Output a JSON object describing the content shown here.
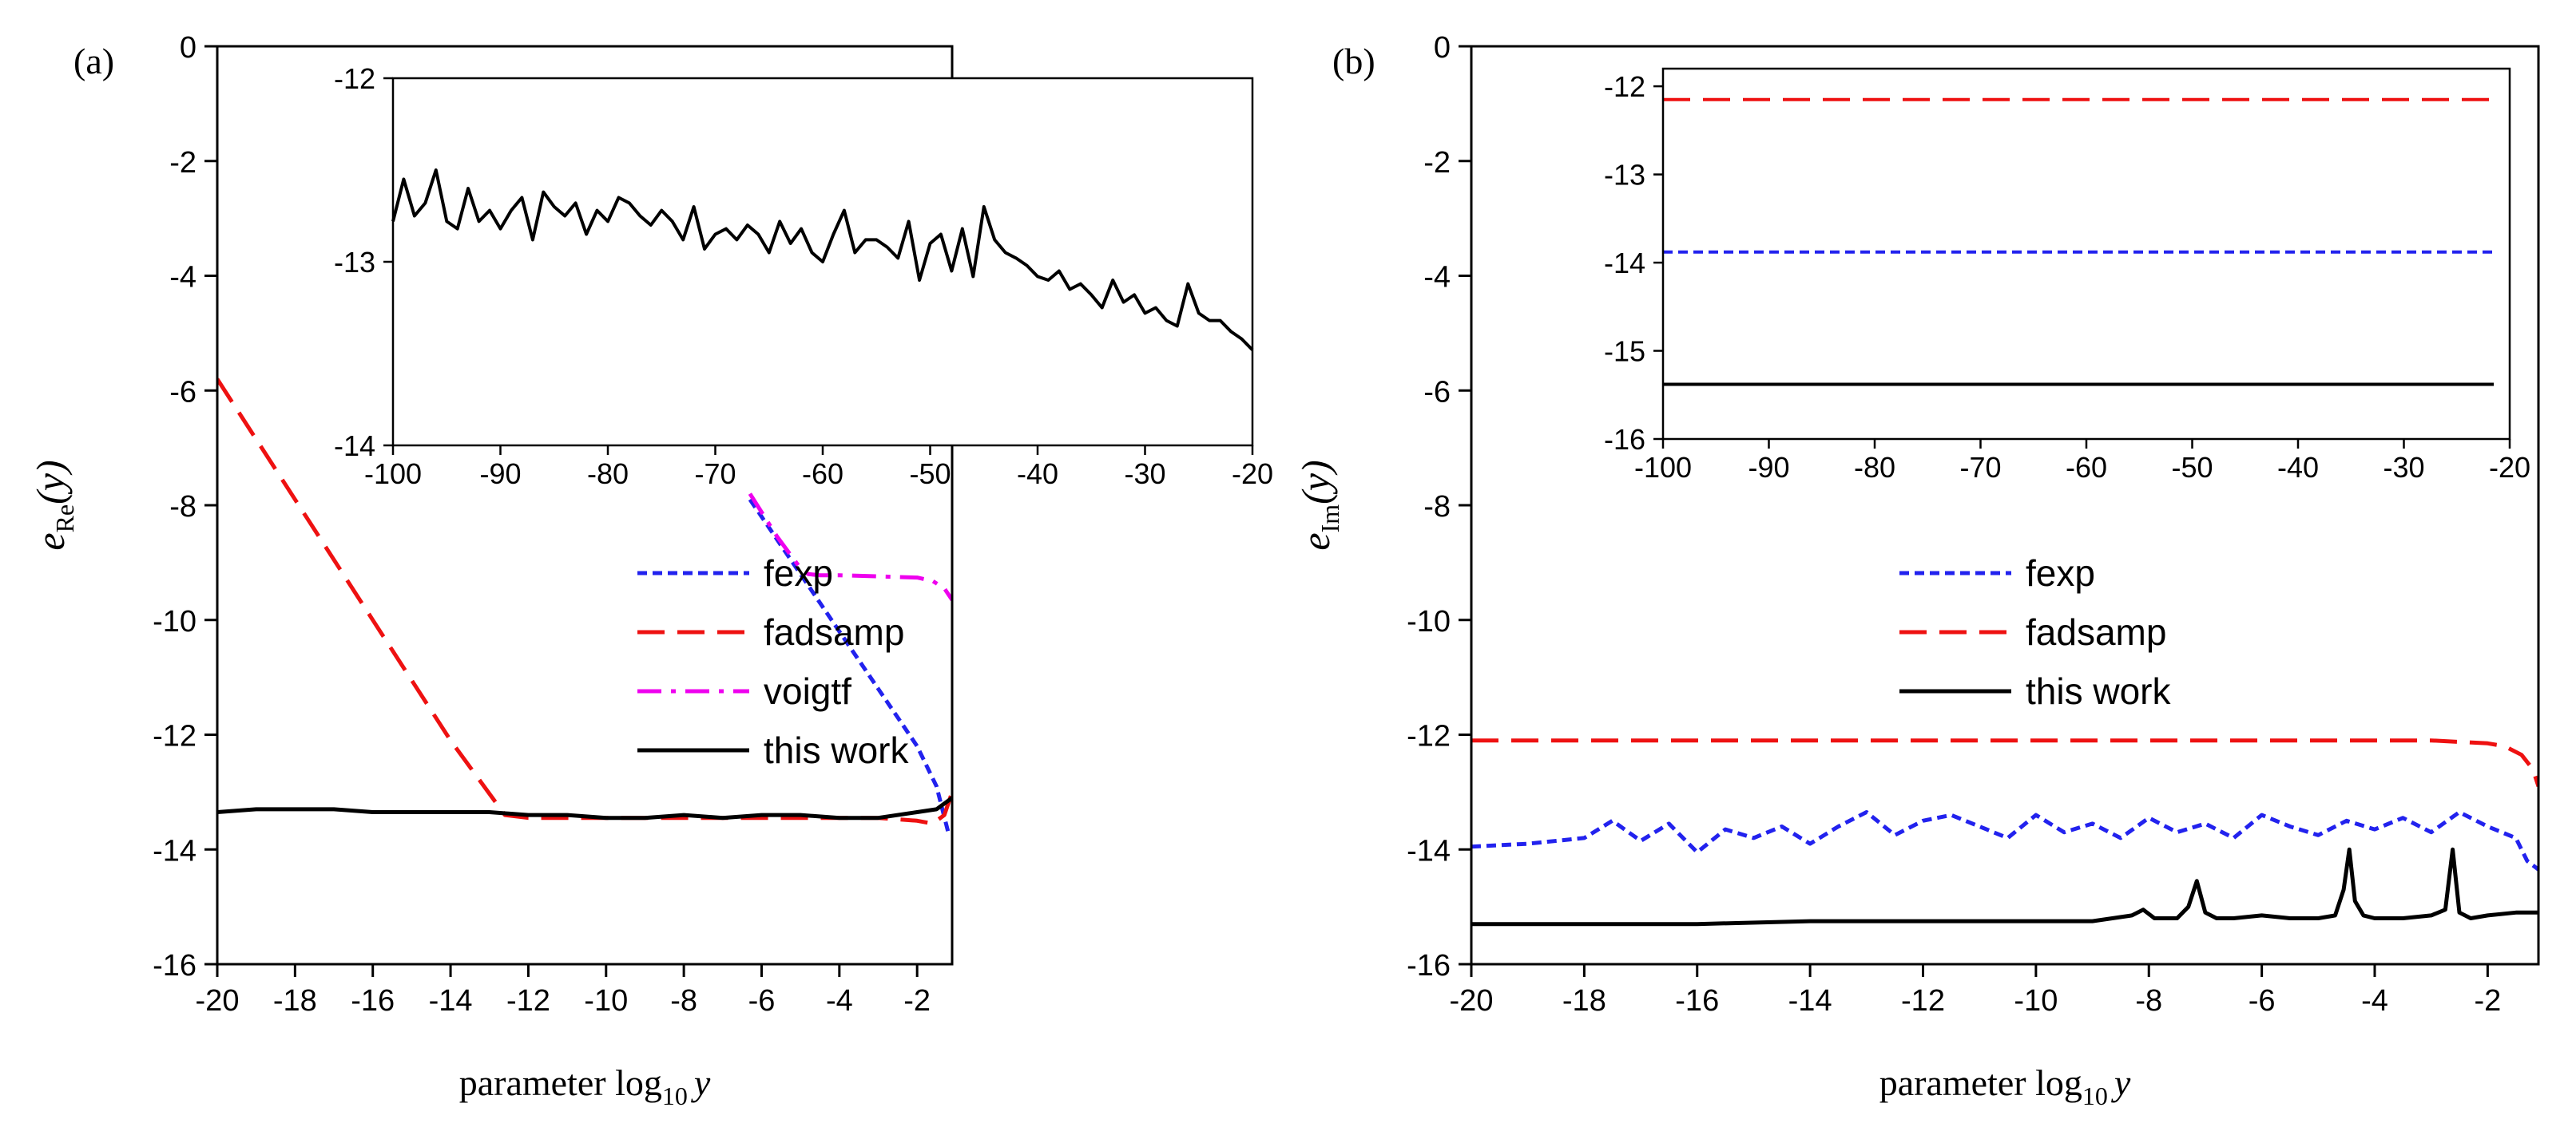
{
  "chart_data": [
    {
      "type": "line",
      "panel_label": "(a)",
      "xlabel": {
        "prefix": "parameter log",
        "sub": "10",
        "var": "y"
      },
      "ylabel": {
        "base": "e",
        "sub": "Re",
        "arg": "(y)"
      },
      "xlim": [
        -20,
        -1.1
      ],
      "ylim": [
        -16,
        0
      ],
      "xticks": [
        -20,
        -18,
        -16,
        -14,
        -12,
        -10,
        -8,
        -6,
        -4,
        -2
      ],
      "yticks": [
        -16,
        -14,
        -12,
        -10,
        -8,
        -6,
        -4,
        -2,
        0
      ],
      "tick_labels_x": [
        "-20",
        "-18",
        "-16",
        "-14",
        "-12",
        "-10",
        "-8",
        "-6",
        "-4",
        "-2"
      ],
      "tick_labels_y": [
        "-16",
        "-14",
        "-12",
        "-10",
        "-8",
        "-6",
        "-4",
        "-2",
        "0"
      ],
      "legend_position": "center-right",
      "series": [
        {
          "name": "fexp",
          "color": "#2222ee",
          "style": "dotted",
          "x": [
            -6.3,
            -5.0,
            -4.0,
            -3.0,
            -2.5,
            -2.0,
            -1.5,
            -1.2
          ],
          "y": [
            -7.9,
            -9.2,
            -10.2,
            -11.2,
            -11.7,
            -12.2,
            -12.9,
            -13.7
          ]
        },
        {
          "name": "fadsamp",
          "color": "#ee1111",
          "style": "dashed",
          "x": [
            -20,
            -18,
            -16,
            -14,
            -12.6,
            -12,
            -10,
            -8,
            -6,
            -4,
            -3,
            -2,
            -1.6,
            -1.3,
            -1.1
          ],
          "y": [
            -5.8,
            -7.9,
            -10.0,
            -12.1,
            -13.4,
            -13.45,
            -13.45,
            -13.45,
            -13.45,
            -13.45,
            -13.45,
            -13.5,
            -13.55,
            -13.4,
            -13.0
          ]
        },
        {
          "name": "voigtf",
          "color": "#ee00ee",
          "style": "dashdot",
          "x": [
            -6.3,
            -5.6,
            -5.0,
            -4.8,
            -4.5,
            -4.0,
            -3.0,
            -2.0,
            -1.6,
            -1.3,
            -1.1
          ],
          "y": [
            -7.8,
            -8.55,
            -9.1,
            -9.2,
            -9.22,
            -9.22,
            -9.24,
            -9.26,
            -9.32,
            -9.45,
            -9.65
          ]
        },
        {
          "name": "this work",
          "color": "#000000",
          "style": "solid",
          "x": [
            -20,
            -19,
            -18,
            -17,
            -16,
            -15,
            -14,
            -13,
            -12,
            -11,
            -10,
            -9,
            -8,
            -7,
            -6,
            -5,
            -4,
            -3,
            -2,
            -1.5,
            -1.1
          ],
          "y": [
            -13.35,
            -13.3,
            -13.3,
            -13.3,
            -13.35,
            -13.35,
            -13.35,
            -13.35,
            -13.4,
            -13.4,
            -13.45,
            -13.45,
            -13.4,
            -13.45,
            -13.4,
            -13.4,
            -13.45,
            -13.45,
            -13.35,
            -13.3,
            -13.1
          ]
        }
      ],
      "inset": {
        "xlim": [
          -100,
          -20
        ],
        "ylim": [
          -14,
          -12
        ],
        "xticks": [
          -100,
          -90,
          -80,
          -70,
          -60,
          -50,
          -40,
          -30,
          -20
        ],
        "yticks": [
          -14,
          -13,
          -12
        ],
        "tick_labels_x": [
          "-100",
          "-90",
          "-80",
          "-70",
          "-60",
          "-50",
          "-40",
          "-30",
          "-20"
        ],
        "tick_labels_y": [
          "-14",
          "-13",
          "-12"
        ],
        "series": [
          {
            "name": "this work",
            "color": "#000000",
            "style": "solid",
            "x": [
              -100,
              -99,
              -98,
              -97,
              -96,
              -95,
              -94,
              -93,
              -92,
              -91,
              -90,
              -89,
              -88,
              -87,
              -86,
              -85,
              -84,
              -83,
              -82,
              -81,
              -80,
              -79,
              -78,
              -77,
              -76,
              -75,
              -74,
              -73,
              -72,
              -71,
              -70,
              -69,
              -68,
              -67,
              -66,
              -65,
              -64,
              -63,
              -62,
              -61,
              -60,
              -59,
              -58,
              -57,
              -56,
              -55,
              -54,
              -53,
              -52,
              -51,
              -50,
              -49,
              -48,
              -47,
              -46,
              -45,
              -44,
              -43,
              -42,
              -41,
              -40,
              -39,
              -38,
              -37,
              -36,
              -35,
              -34,
              -33,
              -32,
              -31,
              -30,
              -29,
              -28,
              -27,
              -26,
              -25,
              -24,
              -23,
              -22,
              -21,
              -20
            ],
            "y": [
              -12.78,
              -12.55,
              -12.75,
              -12.68,
              -12.5,
              -12.78,
              -12.82,
              -12.6,
              -12.78,
              -12.72,
              -12.82,
              -12.72,
              -12.65,
              -12.88,
              -12.62,
              -12.7,
              -12.75,
              -12.68,
              -12.85,
              -12.72,
              -12.78,
              -12.65,
              -12.68,
              -12.75,
              -12.8,
              -12.72,
              -12.78,
              -12.88,
              -12.7,
              -12.93,
              -12.85,
              -12.82,
              -12.88,
              -12.8,
              -12.85,
              -12.95,
              -12.78,
              -12.9,
              -12.82,
              -12.95,
              -13.0,
              -12.85,
              -12.72,
              -12.95,
              -12.88,
              -12.88,
              -12.92,
              -12.98,
              -12.78,
              -13.1,
              -12.9,
              -12.85,
              -13.05,
              -12.82,
              -13.08,
              -12.7,
              -12.88,
              -12.95,
              -12.98,
              -13.02,
              -13.08,
              -13.1,
              -13.05,
              -13.15,
              -13.12,
              -13.18,
              -13.25,
              -13.1,
              -13.22,
              -13.18,
              -13.28,
              -13.25,
              -13.32,
              -13.35,
              -13.12,
              -13.28,
              -13.32,
              -13.32,
              -13.38,
              -13.42,
              -13.48
            ]
          }
        ]
      }
    },
    {
      "type": "line",
      "panel_label": "(b)",
      "xlabel": {
        "prefix": "parameter log",
        "sub": "10",
        "var": "y"
      },
      "ylabel": {
        "base": "e",
        "sub": "Im",
        "arg": "(y)"
      },
      "xlim": [
        -20,
        -1.1
      ],
      "ylim": [
        -16,
        0
      ],
      "xticks": [
        -20,
        -18,
        -16,
        -14,
        -12,
        -10,
        -8,
        -6,
        -4,
        -2
      ],
      "yticks": [
        -16,
        -14,
        -12,
        -10,
        -8,
        -6,
        -4,
        -2,
        0
      ],
      "tick_labels_x": [
        "-20",
        "-18",
        "-16",
        "-14",
        "-12",
        "-10",
        "-8",
        "-6",
        "-4",
        "-2"
      ],
      "tick_labels_y": [
        "-16",
        "-14",
        "-12",
        "-10",
        "-8",
        "-6",
        "-4",
        "-2",
        "0"
      ],
      "legend_position": "center",
      "series": [
        {
          "name": "fexp",
          "color": "#2222ee",
          "style": "dotted",
          "x": [
            -20,
            -19,
            -18,
            -17.5,
            -17,
            -16.5,
            -16,
            -15.5,
            -15,
            -14.5,
            -14,
            -13.5,
            -13,
            -12.5,
            -12,
            -11.5,
            -11,
            -10.5,
            -10,
            -9.5,
            -9,
            -8.5,
            -8,
            -7.5,
            -7,
            -6.5,
            -6,
            -5.5,
            -5,
            -4.5,
            -4,
            -3.5,
            -3,
            -2.5,
            -2,
            -1.5,
            -1.3,
            -1.1
          ],
          "y": [
            -13.95,
            -13.9,
            -13.8,
            -13.5,
            -13.85,
            -13.55,
            -14.05,
            -13.65,
            -13.8,
            -13.6,
            -13.9,
            -13.6,
            -13.35,
            -13.75,
            -13.5,
            -13.4,
            -13.6,
            -13.8,
            -13.4,
            -13.7,
            -13.55,
            -13.8,
            -13.45,
            -13.7,
            -13.55,
            -13.8,
            -13.4,
            -13.6,
            -13.75,
            -13.5,
            -13.65,
            -13.45,
            -13.7,
            -13.35,
            -13.6,
            -13.8,
            -14.2,
            -14.35
          ]
        },
        {
          "name": "fadsamp",
          "color": "#ee1111",
          "style": "dashed",
          "x": [
            -20,
            -18,
            -16,
            -14,
            -12,
            -10,
            -8,
            -6,
            -4,
            -3,
            -2,
            -1.7,
            -1.4,
            -1.2,
            -1.1
          ],
          "y": [
            -12.1,
            -12.1,
            -12.1,
            -12.1,
            -12.1,
            -12.1,
            -12.1,
            -12.1,
            -12.1,
            -12.1,
            -12.15,
            -12.2,
            -12.35,
            -12.6,
            -12.9
          ]
        },
        {
          "name": "this work",
          "color": "#000000",
          "style": "solid",
          "x": [
            -20,
            -18,
            -16,
            -14,
            -12,
            -10,
            -9,
            -8.3,
            -8.1,
            -7.9,
            -7.5,
            -7.3,
            -7.15,
            -7.0,
            -6.8,
            -6.5,
            -6.0,
            -5.5,
            -5.0,
            -4.7,
            -4.55,
            -4.45,
            -4.35,
            -4.2,
            -4.0,
            -3.5,
            -3.0,
            -2.75,
            -2.62,
            -2.5,
            -2.3,
            -2.0,
            -1.5,
            -1.1
          ],
          "y": [
            -15.3,
            -15.3,
            -15.3,
            -15.25,
            -15.25,
            -15.25,
            -15.25,
            -15.15,
            -15.05,
            -15.2,
            -15.2,
            -15.0,
            -14.55,
            -15.1,
            -15.2,
            -15.2,
            -15.15,
            -15.2,
            -15.2,
            -15.15,
            -14.7,
            -14.0,
            -14.9,
            -15.15,
            -15.2,
            -15.2,
            -15.15,
            -15.05,
            -14.0,
            -15.1,
            -15.2,
            -15.15,
            -15.1,
            -15.1
          ]
        }
      ],
      "inset": {
        "xlim": [
          -100,
          -20
        ],
        "ylim": [
          -16,
          -11.8
        ],
        "xticks": [
          -100,
          -90,
          -80,
          -70,
          -60,
          -50,
          -40,
          -30,
          -20
        ],
        "yticks": [
          -16,
          -15,
          -14,
          -13,
          -12
        ],
        "tick_labels_x": [
          "-100",
          "-90",
          "-80",
          "-70",
          "-60",
          "-50",
          "-40",
          "-30",
          "-20"
        ],
        "tick_labels_y": [
          "-16",
          "-15",
          "-14",
          "-13",
          "-12"
        ],
        "series": [
          {
            "name": "fadsamp",
            "color": "#ee1111",
            "style": "dashed",
            "x": [
              -100,
              -21.5
            ],
            "y": [
              -12.15,
              -12.15
            ]
          },
          {
            "name": "fexp",
            "color": "#2222ee",
            "style": "dotted",
            "x": [
              -100,
              -21.5
            ],
            "y": [
              -13.88,
              -13.88
            ]
          },
          {
            "name": "this work",
            "color": "#000000",
            "style": "solid",
            "x": [
              -100,
              -21.5
            ],
            "y": [
              -15.38,
              -15.38
            ]
          }
        ]
      }
    }
  ]
}
